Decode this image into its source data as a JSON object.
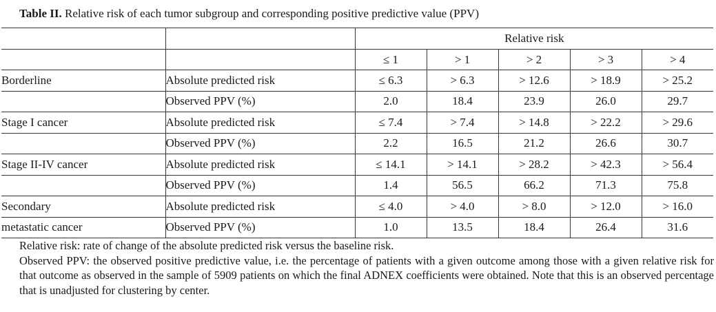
{
  "caption": {
    "label": "Table II.",
    "text": " Relative risk of each tumor subgroup and corresponding positive predictive value (PPV)"
  },
  "header": {
    "relative_risk": "Relative risk",
    "columns": [
      "≤ 1",
      "> 1",
      "> 2",
      "> 3",
      "> 4"
    ]
  },
  "groups": [
    {
      "name_line1": "Borderline",
      "name_line2": "",
      "rows": [
        {
          "measure": "Absolute predicted risk",
          "values": [
            "≤ 6.3",
            "> 6.3",
            "> 12.6",
            "> 18.9",
            "> 25.2"
          ]
        },
        {
          "measure": "Observed PPV (%)",
          "values": [
            "2.0",
            "18.4",
            "23.9",
            "26.0",
            "29.7"
          ]
        }
      ]
    },
    {
      "name_line1": "Stage I cancer",
      "name_line2": "",
      "rows": [
        {
          "measure": "Absolute predicted risk",
          "values": [
            "≤ 7.4",
            "> 7.4",
            "> 14.8",
            "> 22.2",
            "> 29.6"
          ]
        },
        {
          "measure": "Observed PPV (%)",
          "values": [
            "2.2",
            "16.5",
            "21.2",
            "26.6",
            "30.7"
          ]
        }
      ]
    },
    {
      "name_line1": "Stage II-IV cancer",
      "name_line2": "",
      "rows": [
        {
          "measure": "Absolute predicted risk",
          "values": [
            "≤ 14.1",
            "> 14.1",
            "> 28.2",
            "> 42.3",
            "> 56.4"
          ]
        },
        {
          "measure": "Observed PPV (%)",
          "values": [
            "1.4",
            "56.5",
            "66.2",
            "71.3",
            "75.8"
          ]
        }
      ]
    },
    {
      "name_line1": "Secondary",
      "name_line2": "metastatic cancer",
      "rows": [
        {
          "measure": "Absolute predicted risk",
          "values": [
            "≤ 4.0",
            "> 4.0",
            "> 8.0",
            "> 12.0",
            "> 16.0"
          ]
        },
        {
          "measure": "Observed PPV (%)",
          "values": [
            "1.0",
            "13.5",
            "18.4",
            "26.4",
            "31.6"
          ]
        }
      ]
    }
  ],
  "notes": [
    "Relative risk: rate of change of the absolute predicted risk versus the baseline risk.",
    "Observed PPV: the observed positive predictive value, i.e. the percentage of patients with a given outcome among those with a given relative risk for that outcome as observed in the sample of 5909 patients on which the final ADNEX coefficients were obtained. Note that this is an observed percentage that is unadjusted for clustering by center."
  ]
}
